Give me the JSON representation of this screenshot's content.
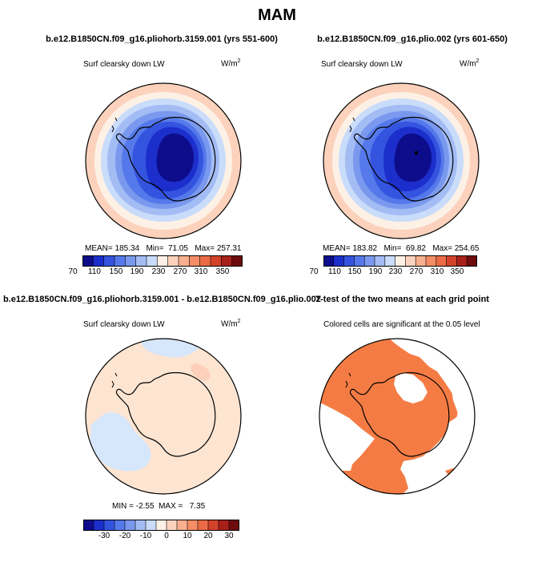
{
  "figure": {
    "title": "MAM"
  },
  "panels": [
    {
      "title": "b.e12.B1850CN.f09_g16.pliohorb.3159.001 (yrs 551-600)",
      "variable": "Surf clearsky down LW",
      "units_base": "W/m",
      "units_exp": "2",
      "stats": {
        "mean_label": "MEAN=",
        "mean": "185.34",
        "min_label": "Min=",
        "min": "71.05",
        "max_label": "Max=",
        "max": "257.31"
      }
    },
    {
      "title": "b.e12.B1850CN.f09_g16.plio.002 (yrs 601-650)",
      "variable": "Surf clearsky down LW",
      "units_base": "W/m",
      "units_exp": "2",
      "stats": {
        "mean_label": "MEAN=",
        "mean": "183.82",
        "min_label": "Min=",
        "min": "69.82",
        "max_label": "Max=",
        "max": "254.65"
      }
    },
    {
      "title": "b.e12.B1850CN.f09_g16.pliohorb.3159.001 - b.e12.B1850CN.f09_g16.plio.002",
      "variable": "Surf clearsky down LW",
      "units_base": "W/m",
      "units_exp": "2",
      "stats": {
        "min_label": "MIN =",
        "min": "-2.55",
        "max_label": "MAX =",
        "max": "7.35"
      }
    },
    {
      "title": "T-test of the two means at each grid point",
      "variable": "Colored cells are significant at the 0.05 level"
    }
  ],
  "chart_data": [
    {
      "type": "heatmap",
      "projection": "south-polar-stereographic",
      "title": "b.e12.B1850CN.f09_g16.pliohorb.3159.001 (yrs 551-600)",
      "variable": "Surf clearsky down LW",
      "units": "W/m^2",
      "mean": 185.34,
      "min": 71.05,
      "max": 257.31,
      "colorbar": {
        "levels": [
          70,
          90,
          110,
          130,
          150,
          170,
          190,
          210,
          230,
          250,
          270,
          290,
          310,
          330,
          350
        ],
        "tick_labels": [
          "70",
          "110",
          "150",
          "190",
          "230",
          "270",
          "310",
          "350"
        ]
      },
      "field": "low values (~70-110) over the East Antarctic plateau, increasing outward to ~230-250 near the mid-latitude edge"
    },
    {
      "type": "heatmap",
      "projection": "south-polar-stereographic",
      "title": "b.e12.B1850CN.f09_g16.plio.002 (yrs 601-650)",
      "variable": "Surf clearsky down LW",
      "units": "W/m^2",
      "mean": 183.82,
      "min": 69.82,
      "max": 254.65,
      "colorbar": {
        "levels": [
          70,
          90,
          110,
          130,
          150,
          170,
          190,
          210,
          230,
          250,
          270,
          290,
          310,
          330,
          350
        ],
        "tick_labels": [
          "70",
          "110",
          "150",
          "190",
          "230",
          "270",
          "310",
          "350"
        ]
      },
      "field": "low values (~70-110) over the East Antarctic plateau, increasing outward to ~230-250 near the mid-latitude edge"
    },
    {
      "type": "heatmap",
      "projection": "south-polar-stereographic",
      "title": "difference (pliohorb.3159.001 - plio.002)",
      "variable": "Surf clearsky down LW",
      "units": "W/m^2",
      "min": -2.55,
      "max": 7.35,
      "colorbar": {
        "levels": [
          -35,
          -30,
          -25,
          -20,
          -15,
          -10,
          -5,
          0,
          5,
          10,
          15,
          20,
          25,
          30,
          35
        ],
        "tick_labels": [
          "-30",
          "-20",
          "-10",
          "0",
          "10",
          "20",
          "30"
        ]
      },
      "field": "mostly 0 to 5 everywhere; small negative (-5 to 0) patches near the Indian Ocean sector and the Weddell/South Atlantic sector; one small 5-10 patch north-east of Antarctica"
    },
    {
      "type": "heatmap",
      "projection": "south-polar-stereographic",
      "title": "T-test of the two means at each grid point",
      "variable": "Colored cells are significant at the 0.05 level",
      "significance_level": 0.05,
      "field": "significant cells cover roughly 60% of the domain including most of Antarctica; non-significant regions over the north-east, east and south-west sectors"
    }
  ],
  "colors": {
    "lw_scale": [
      "#0d0d8c",
      "#1c2fcc",
      "#3454e0",
      "#5579ea",
      "#7a99ee",
      "#a3bcf4",
      "#c9dcfa",
      "#fdf1e6",
      "#fcd2bd",
      "#f9b090",
      "#f48d66",
      "#ea6b45",
      "#d2432a",
      "#a8201a",
      "#6e0b0d"
    ],
    "sig": "#f47c44",
    "coast": "#000000"
  }
}
